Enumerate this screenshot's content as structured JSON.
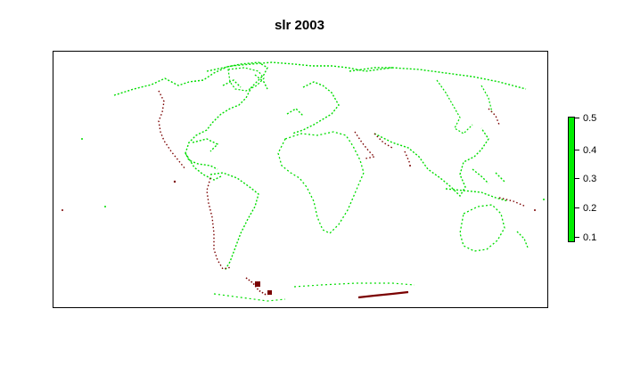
{
  "title": "slr 2003",
  "colors": {
    "primary_series": "#00dd00",
    "secondary_series": "#7a0000",
    "frame": "#000000",
    "background": "#ffffff"
  },
  "legend": {
    "position": "right",
    "ticks": [
      "0.5",
      "0.4",
      "0.3",
      "0.2",
      "0.1"
    ]
  }
}
